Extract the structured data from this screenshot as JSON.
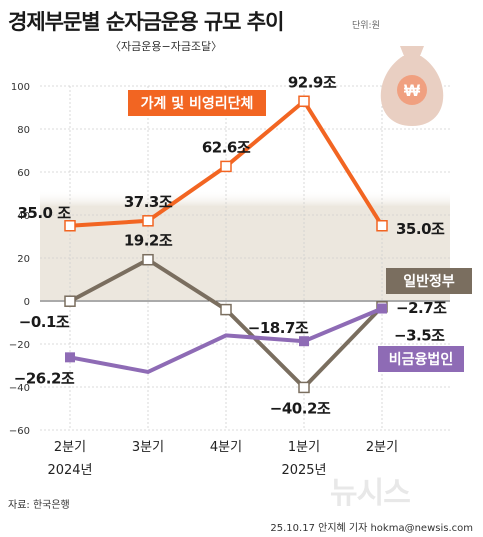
{
  "header": {
    "title": "경제부문별 순자금운용 규모 추이",
    "unit": "단위:원",
    "subtitle": "〈자금운용−자금조달〉"
  },
  "footer": {
    "source": "자료: 한국은행",
    "credit": "25.10.17 안지혜 기자 hokma@newsis.com",
    "logo_text": "뉴시스"
  },
  "colors": {
    "households": "#f26522",
    "government": "#7a6e5f",
    "corporations": "#8e6bb5",
    "background_band": "#ece7de"
  },
  "chart_data": {
    "type": "line",
    "categories": [
      "2분기",
      "3분기",
      "4분기",
      "1분기",
      "2분기"
    ],
    "year_labels": [
      "2024년",
      "",
      "",
      "2025년",
      ""
    ],
    "ylim": [
      -60,
      100
    ],
    "yticks": [
      100,
      80,
      60,
      40,
      20,
      0,
      -20,
      -40,
      -60
    ],
    "grid": true,
    "series": [
      {
        "name": "가계 및 비영리단체",
        "color": "#f26522",
        "values": [
          35.0,
          37.3,
          62.6,
          92.9,
          35.0
        ],
        "labels": [
          "35.0 조",
          "37.3조",
          "62.6조",
          "92.9조",
          "35.0조"
        ]
      },
      {
        "name": "일반정부",
        "color": "#7a6e5f",
        "values": [
          -0.1,
          19.2,
          -4,
          -40.2,
          -2.7
        ],
        "labels": [
          "−0.1조",
          "19.2조",
          "",
          "−40.2조",
          "−2.7조"
        ]
      },
      {
        "name": "비금융법인",
        "color": "#8e6bb5",
        "values": [
          -26.2,
          -33,
          -16,
          -18.7,
          -3.5
        ],
        "labels": [
          "−26.2조",
          "",
          "",
          "−18.7조",
          "−3.5조"
        ]
      }
    ]
  }
}
